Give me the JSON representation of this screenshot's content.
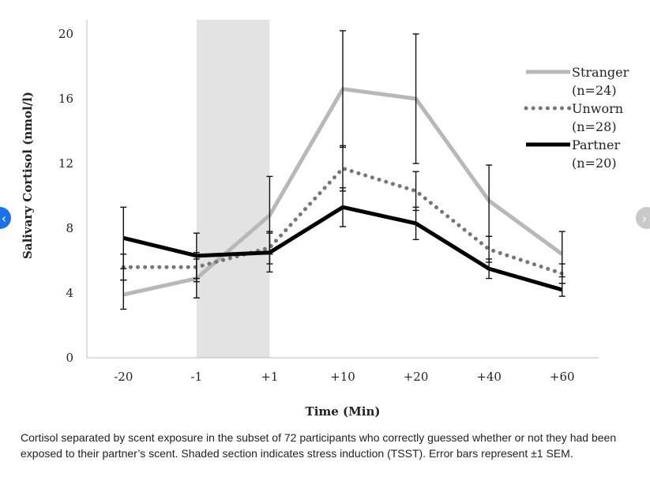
{
  "chart_data": {
    "type": "line",
    "title": "",
    "xlabel": "Time (Min)",
    "ylabel": "Salivary Cortisol (nmol/l)",
    "categories": [
      "-20",
      "-1",
      "+1",
      "+10",
      "+20",
      "+40",
      "+60"
    ],
    "ylim": [
      0,
      20
    ],
    "yticks": [
      "0",
      "4",
      "8",
      "12",
      "16",
      "20"
    ],
    "shaded_region": {
      "from": "-1",
      "to": "+1",
      "color": "#e3e3e3"
    },
    "legend_position": "top-right",
    "series": [
      {
        "name": "Stranger",
        "name_line2": "(n=24)",
        "color": "#b8b8b8",
        "style": "solid",
        "values": [
          3.9,
          4.9,
          8.8,
          16.6,
          16.0,
          9.7,
          6.4
        ],
        "errors": [
          0.9,
          1.2,
          2.4,
          3.6,
          4.0,
          2.2,
          1.4
        ]
      },
      {
        "name": "Unworn",
        "name_line2": "(n=28)",
        "color": "#777777",
        "style": "dotted",
        "values": [
          5.6,
          5.6,
          6.8,
          11.7,
          10.3,
          6.7,
          5.2
        ],
        "errors": [
          0.8,
          0.9,
          1.0,
          1.4,
          1.2,
          0.8,
          0.6
        ]
      },
      {
        "name": "Partner",
        "name_line2": "(n=20)",
        "color": "#000000",
        "style": "solid",
        "values": [
          7.4,
          6.3,
          6.5,
          9.3,
          8.3,
          5.5,
          4.2
        ],
        "errors": [
          1.9,
          1.4,
          1.2,
          1.2,
          1.0,
          0.6,
          0.4
        ]
      }
    ]
  },
  "caption": "Cortisol separated by scent exposure in the subset of 72 participants who correctly guessed whether or not they had been exposed to their partner’s scent. Shaded section indicates stress induction (TSST). Error bars represent ±1 SEM.",
  "nav": {
    "prev_icon": "chevron-left-icon",
    "next_icon": "chevron-right-icon",
    "prev_glyph": "‹",
    "next_glyph": "›"
  }
}
